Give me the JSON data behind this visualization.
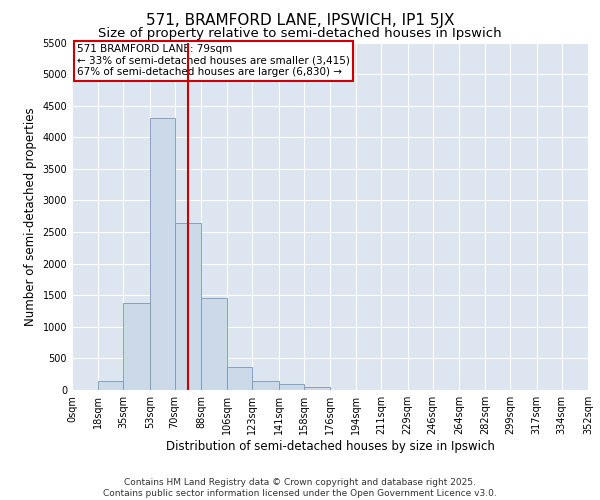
{
  "title": "571, BRAMFORD LANE, IPSWICH, IP1 5JX",
  "subtitle": "Size of property relative to semi-detached houses in Ipswich",
  "xlabel": "Distribution of semi-detached houses by size in Ipswich",
  "ylabel": "Number of semi-detached properties",
  "bins": [
    0,
    18,
    35,
    53,
    70,
    88,
    106,
    123,
    141,
    158,
    176,
    194,
    211,
    229,
    246,
    264,
    282,
    299,
    317,
    334,
    352
  ],
  "bin_labels": [
    "0sqm",
    "18sqm",
    "35sqm",
    "53sqm",
    "70sqm",
    "88sqm",
    "106sqm",
    "123sqm",
    "141sqm",
    "158sqm",
    "176sqm",
    "194sqm",
    "211sqm",
    "229sqm",
    "246sqm",
    "264sqm",
    "282sqm",
    "299sqm",
    "317sqm",
    "334sqm",
    "352sqm"
  ],
  "counts": [
    5,
    150,
    1380,
    4300,
    2650,
    1450,
    370,
    150,
    100,
    40,
    5,
    0,
    0,
    0,
    0,
    0,
    0,
    0,
    0,
    0
  ],
  "bar_color": "#ccd9e8",
  "bar_edgecolor": "#7799bb",
  "vertical_line_x": 79,
  "vline_color": "#cc0000",
  "annotation_text": "571 BRAMFORD LANE: 79sqm\n← 33% of semi-detached houses are smaller (3,415)\n67% of semi-detached houses are larger (6,830) →",
  "annotation_box_color": "#cc0000",
  "ylim": [
    0,
    5500
  ],
  "yticks": [
    0,
    500,
    1000,
    1500,
    2000,
    2500,
    3000,
    3500,
    4000,
    4500,
    5000,
    5500
  ],
  "background_color": "#dde6f0",
  "grid_color": "#ffffff",
  "footer_text": "Contains HM Land Registry data © Crown copyright and database right 2025.\nContains public sector information licensed under the Open Government Licence v3.0.",
  "title_fontsize": 11,
  "subtitle_fontsize": 9.5,
  "axis_label_fontsize": 8.5,
  "tick_fontsize": 7,
  "footer_fontsize": 6.5,
  "annotation_fontsize": 7.5
}
